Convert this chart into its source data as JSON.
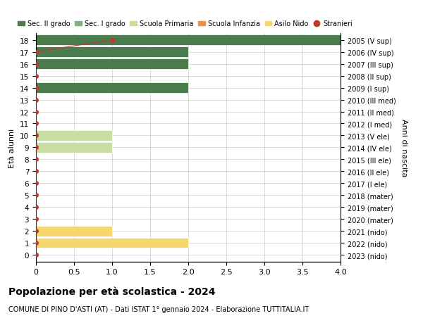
{
  "title": "Popolazione per età scolastica - 2024",
  "subtitle": "COMUNE DI PINO D'ASTI (AT) - Dati ISTAT 1° gennaio 2024 - Elaborazione TUTTITALIA.IT",
  "ylabel_left": "Età alunni",
  "ylabel_right": "Anni di nascita",
  "xlim": [
    0,
    4.0
  ],
  "xticks": [
    0,
    0.5,
    1.0,
    1.5,
    2.0,
    2.5,
    3.0,
    3.5,
    4.0
  ],
  "ages": [
    18,
    17,
    16,
    15,
    14,
    13,
    12,
    11,
    10,
    9,
    8,
    7,
    6,
    5,
    4,
    3,
    2,
    1,
    0
  ],
  "years": [
    "2005 (V sup)",
    "2006 (IV sup)",
    "2007 (III sup)",
    "2008 (II sup)",
    "2009 (I sup)",
    "2010 (III med)",
    "2011 (II med)",
    "2012 (I med)",
    "2013 (V ele)",
    "2014 (IV ele)",
    "2015 (III ele)",
    "2016 (II ele)",
    "2017 (I ele)",
    "2018 (mater)",
    "2019 (mater)",
    "2020 (mater)",
    "2021 (nido)",
    "2022 (nido)",
    "2023 (nido)"
  ],
  "bars": [
    {
      "age": 18,
      "value": 4.0,
      "color": "#4a7c4e"
    },
    {
      "age": 17,
      "value": 2.0,
      "color": "#4a7c4e"
    },
    {
      "age": 16,
      "value": 2.0,
      "color": "#4a7c4e"
    },
    {
      "age": 15,
      "value": 0.0,
      "color": "#4a7c4e"
    },
    {
      "age": 14,
      "value": 2.0,
      "color": "#4a7c4e"
    },
    {
      "age": 13,
      "value": 0.0,
      "color": "#7ab57e"
    },
    {
      "age": 12,
      "value": 0.0,
      "color": "#7ab57e"
    },
    {
      "age": 11,
      "value": 0.0,
      "color": "#7ab57e"
    },
    {
      "age": 10,
      "value": 1.0,
      "color": "#c8dea0"
    },
    {
      "age": 9,
      "value": 1.0,
      "color": "#c8dea0"
    },
    {
      "age": 8,
      "value": 0.0,
      "color": "#c8dea0"
    },
    {
      "age": 7,
      "value": 0.0,
      "color": "#c8dea0"
    },
    {
      "age": 6,
      "value": 0.0,
      "color": "#c8dea0"
    },
    {
      "age": 5,
      "value": 0.0,
      "color": "#e8904a"
    },
    {
      "age": 4,
      "value": 0.0,
      "color": "#e8904a"
    },
    {
      "age": 3,
      "value": 0.0,
      "color": "#e8904a"
    },
    {
      "age": 2,
      "value": 1.0,
      "color": "#f5d76e"
    },
    {
      "age": 1,
      "value": 2.0,
      "color": "#f5d76e"
    },
    {
      "age": 0,
      "value": 0.0,
      "color": "#f5d76e"
    }
  ],
  "stranieri_ages": [
    18,
    17,
    16,
    15,
    14,
    13,
    12,
    11,
    10,
    9,
    8,
    7,
    6,
    5,
    4,
    3,
    2,
    1,
    0
  ],
  "stranieri_vals": [
    1,
    0,
    0,
    0,
    0,
    0,
    0,
    0,
    0,
    0,
    0,
    0,
    0,
    0,
    0,
    0,
    0,
    0,
    0
  ],
  "stranieri_color": "#c0392b",
  "legend": [
    {
      "label": "Sec. II grado",
      "color": "#4a7c4e",
      "type": "patch"
    },
    {
      "label": "Sec. I grado",
      "color": "#7ab57e",
      "type": "patch"
    },
    {
      "label": "Scuola Primaria",
      "color": "#c8dea0",
      "type": "patch"
    },
    {
      "label": "Scuola Infanzia",
      "color": "#e8904a",
      "type": "patch"
    },
    {
      "label": "Asilo Nido",
      "color": "#f5d76e",
      "type": "patch"
    },
    {
      "label": "Stranieri",
      "color": "#c0392b",
      "type": "dot"
    }
  ],
  "bg_color": "#ffffff",
  "grid_color": "#cccccc",
  "bar_height": 0.85,
  "ylim": [
    -0.55,
    18.55
  ]
}
